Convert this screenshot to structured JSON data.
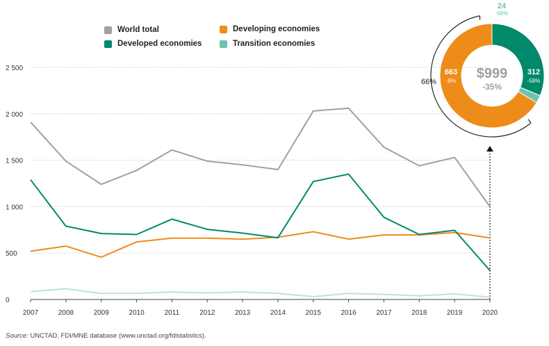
{
  "chart_data": {
    "type": "line",
    "x": [
      "2007",
      "2008",
      "2009",
      "2010",
      "2011",
      "2012",
      "2013",
      "2014",
      "2015",
      "2016",
      "2017",
      "2018",
      "2019",
      "2020"
    ],
    "ylim": [
      0,
      2500
    ],
    "yticks": [
      "0",
      "500",
      "1 000",
      "1 500",
      "2 000",
      "2 500"
    ],
    "grid": "horizontal dotted",
    "legend": "top",
    "series": [
      {
        "name": "World total",
        "color": "#a0a0a0",
        "values": [
          1910,
          1490,
          1240,
          1390,
          1610,
          1490,
          1450,
          1400,
          2030,
          2060,
          1640,
          1440,
          1530,
          999
        ]
      },
      {
        "name": "Developed economies",
        "color": "#00896a",
        "values": [
          1290,
          790,
          710,
          700,
          865,
          755,
          715,
          665,
          1270,
          1350,
          885,
          700,
          745,
          312
        ]
      },
      {
        "name": "Developing economies",
        "color": "#ee8c1a",
        "values": [
          520,
          575,
          455,
          620,
          660,
          660,
          650,
          670,
          730,
          650,
          695,
          695,
          720,
          663
        ]
      },
      {
        "name": "Transition economies",
        "color": "#bfe3d8",
        "values": [
          85,
          115,
          65,
          65,
          80,
          70,
          80,
          65,
          30,
          65,
          55,
          40,
          60,
          24
        ]
      }
    ],
    "donut": {
      "center_value": "$999",
      "center_change": "-35%",
      "share_label": "66%",
      "segments": [
        {
          "name": "Developing economies",
          "value": 663,
          "label": "663",
          "change": "-8%",
          "color": "#ee8c1a"
        },
        {
          "name": "Developed economies",
          "value": 312,
          "label": "312",
          "change": "-58%",
          "color": "#00896a"
        },
        {
          "name": "Transition economies",
          "value": 24,
          "label": "24",
          "change": "-58%",
          "color": "#6fc4ae"
        }
      ]
    }
  },
  "legend": [
    {
      "label": "World total",
      "color": "#a0a0a0"
    },
    {
      "label": "Developing economies",
      "color": "#ee8c1a"
    },
    {
      "label": "Developed economies",
      "color": "#00896a"
    },
    {
      "label": "Transition economies",
      "color": "#6fc4ae"
    }
  ],
  "source": {
    "prefix": "Source:",
    "text": "UNCTAD, FDI/MNE database (www.unctad.org/fdistatistics)."
  }
}
